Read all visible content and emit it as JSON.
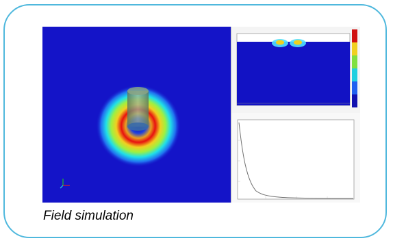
{
  "caption": "Field simulation",
  "colors": {
    "border": "#4fb8dd",
    "field_background": "#1414c8"
  },
  "figure": {
    "main_panel": "field-intensity-map",
    "right_top_panel": "cross-section-map-with-colorbar",
    "right_bottom_panel": "decay-curve-plot"
  }
}
